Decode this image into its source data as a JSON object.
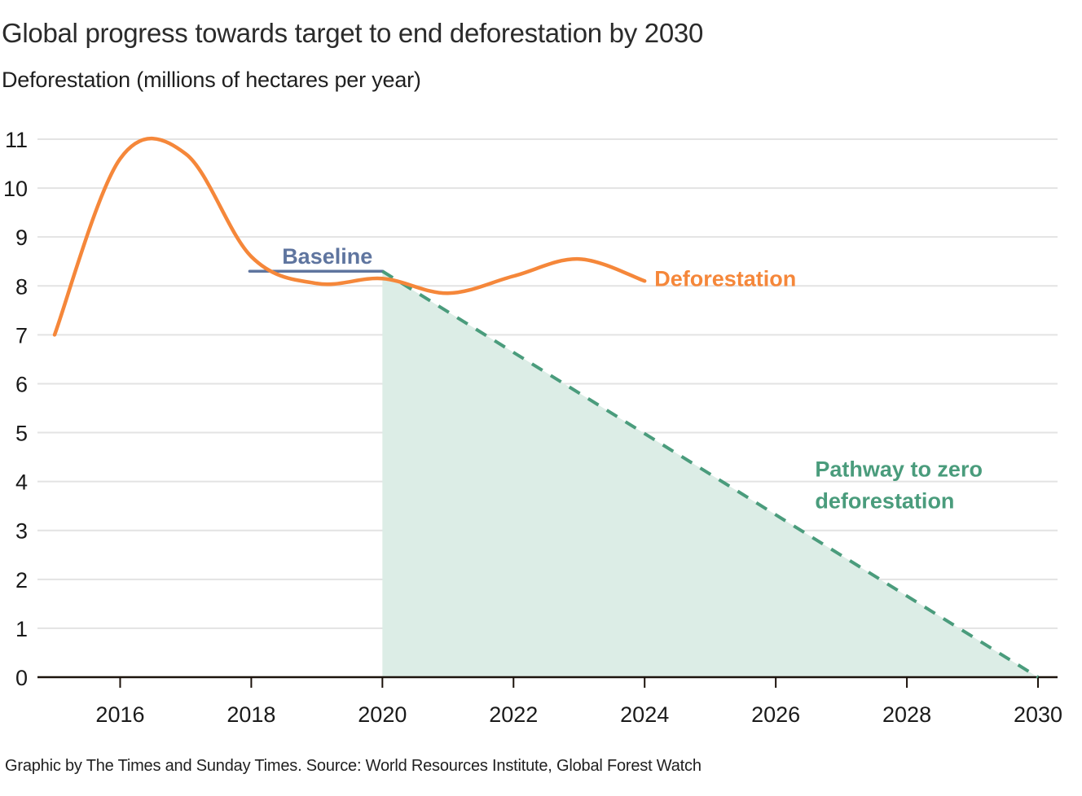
{
  "header": {
    "title": "Global progress towards target to end deforestation by 2030",
    "subtitle": "Deforestation (millions of hectares per year)"
  },
  "footer": {
    "credit": "Graphic by The Times and Sunday Times. Source: World Resources Institute, Global Forest Watch"
  },
  "colors": {
    "deforestation": "#f5873a",
    "baseline": "#5f759f",
    "pathway": "#4a9c7c",
    "pathway_fill": "#dcede6",
    "grid": "#e3e3e3",
    "axis": "#1c130c"
  },
  "chart_data": {
    "type": "line",
    "title": "Global progress towards target to end deforestation by 2030",
    "xlabel": "",
    "ylabel": "Deforestation (millions of hectares per year)",
    "xlim": [
      2015,
      2030
    ],
    "ylim": [
      0,
      11
    ],
    "grid": true,
    "x_ticks": [
      2016,
      2018,
      2020,
      2022,
      2024,
      2026,
      2028,
      2030
    ],
    "y_ticks": [
      0,
      1,
      2,
      3,
      4,
      5,
      6,
      7,
      8,
      9,
      10,
      11
    ],
    "series": [
      {
        "name": "Deforestation",
        "style": "solid-smooth",
        "x": [
          2015,
          2016,
          2017,
          2018,
          2019,
          2020,
          2021,
          2022,
          2023,
          2024
        ],
        "values": [
          7.0,
          10.6,
          10.7,
          8.6,
          8.05,
          8.15,
          7.85,
          8.2,
          8.55,
          8.1
        ]
      },
      {
        "name": "Baseline",
        "style": "solid",
        "x": [
          2018,
          2020
        ],
        "values": [
          8.3,
          8.3
        ]
      },
      {
        "name": "Pathway to zero deforestation",
        "style": "dashed-with-area",
        "x": [
          2020,
          2030
        ],
        "values": [
          8.3,
          0
        ]
      }
    ],
    "annotations": [
      {
        "text": "Baseline",
        "series": "Baseline",
        "x": 2019.85,
        "y": 8.6
      },
      {
        "text": "Deforestation",
        "series": "Deforestation",
        "x": 2024.15,
        "y": 8.15
      },
      {
        "text": "Pathway to zero",
        "series": "Pathway to zero deforestation",
        "x": 2026.6,
        "y": 4.25
      },
      {
        "text": "deforestation",
        "series": "Pathway to zero deforestation",
        "x": 2026.6,
        "y": 3.6
      }
    ]
  }
}
